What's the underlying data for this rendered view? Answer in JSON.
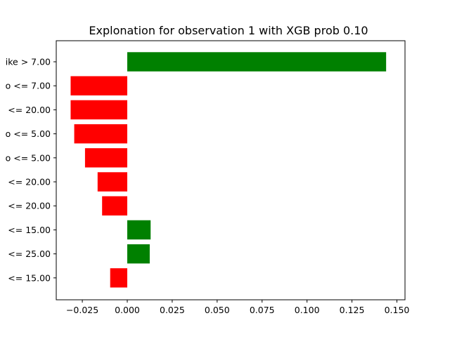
{
  "chart_data": {
    "type": "bar",
    "orientation": "horizontal",
    "title": "Explonation for observation 1 with XGB prob 0.10",
    "xlabel": "",
    "ylabel": "",
    "categories": [
      "ike > 7.00",
      "o <= 7.00",
      "<= 20.00",
      "o <= 5.00",
      "o <= 5.00",
      "<= 20.00",
      "<= 20.00",
      "<= 15.00",
      "<= 25.00",
      "<= 15.00"
    ],
    "values": [
      0.144,
      -0.0315,
      -0.0315,
      -0.0295,
      -0.0235,
      -0.0165,
      -0.014,
      0.013,
      0.0125,
      -0.0095
    ],
    "xlim": [
      -0.0395,
      0.1545
    ],
    "xticks": [
      -0.025,
      0.0,
      0.025,
      0.05,
      0.075,
      0.1,
      0.125,
      0.15
    ],
    "xtick_labels": [
      "−0.025",
      "0.000",
      "0.025",
      "0.050",
      "0.075",
      "0.100",
      "0.125",
      "0.150"
    ],
    "grid": false,
    "legend": "none",
    "colors": {
      "positive": "#008000",
      "negative": "#ff0000",
      "axis": "#000000"
    }
  }
}
